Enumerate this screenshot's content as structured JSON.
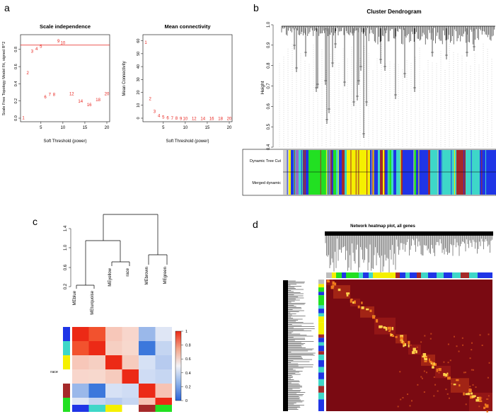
{
  "panels": {
    "a": {
      "letter": "a",
      "scale": {
        "title": "Scale independence",
        "xlabel": "Soft Threshold (power)",
        "ylabel": "Scale Free Topology Model Fit, signed R^2",
        "xticks": [
          "5",
          "10",
          "15",
          "20"
        ],
        "yticks": [
          "0.0",
          "0.2",
          "0.4",
          "0.6",
          "0.8"
        ]
      },
      "mean": {
        "title": "Mean connectivity",
        "xlabel": "Soft Threshold (power)",
        "ylabel": "Mean Connectivity",
        "xticks": [
          "5",
          "10",
          "15",
          "20"
        ],
        "yticks": [
          "0",
          "10",
          "20",
          "30",
          "40",
          "50",
          "60"
        ]
      }
    },
    "b": {
      "letter": "b",
      "title": "Cluster Dendrogram",
      "ylabel": "Height",
      "yticks": [
        "1.0",
        "0.9",
        "0.8",
        "0.7",
        "0.6",
        "0.5",
        "0.4"
      ],
      "row_labels": [
        "Dynamic Tree Cut",
        "Merged dynamic"
      ]
    },
    "c": {
      "letter": "c",
      "yticks": [
        "1.4",
        "1.0",
        "0.6",
        "0.2"
      ],
      "leaves": [
        "MEblue",
        "MEturquoise",
        "MEyellow",
        "race",
        "MEbrown",
        "MEgreen"
      ],
      "side_label": "race",
      "colorbar_ticks": [
        "1",
        "0.8",
        "0.6",
        "0.4",
        "0.2",
        "0"
      ]
    },
    "d": {
      "letter": "d",
      "title": "Network heatmap plot, all genes"
    }
  },
  "colors": {
    "red": "#e8211b",
    "module_blue": "#1f35e6",
    "module_turquoise": "#3ed7c8",
    "module_yellow": "#f5f000",
    "module_green": "#22e022",
    "module_brown": "#a52a2a",
    "module_grey": "#bebebe",
    "heat_dark": "#7a0a12"
  },
  "chart_data": [
    {
      "type": "scatter",
      "title": "Scale independence",
      "xlabel": "Soft Threshold (power)",
      "ylabel": "Scale Free Topology Model Fit, signed R^2",
      "x": [
        1,
        2,
        3,
        4,
        5,
        6,
        7,
        8,
        9,
        10,
        12,
        14,
        16,
        18,
        20
      ],
      "y": [
        0.01,
        0.53,
        0.78,
        0.81,
        0.84,
        0.25,
        0.28,
        0.28,
        0.9,
        0.88,
        0.29,
        0.2,
        0.16,
        0.22,
        0.29
      ],
      "labels": [
        "1",
        "2",
        "3",
        "4",
        "5",
        "6",
        "7",
        "8",
        "9",
        "10",
        "12",
        "14",
        "16",
        "18",
        "20"
      ],
      "hline": 0.85,
      "xlim": [
        1,
        20
      ],
      "ylim": [
        0,
        0.93
      ]
    },
    {
      "type": "scatter",
      "title": "Mean connectivity",
      "xlabel": "Soft Threshold (power)",
      "ylabel": "Mean Connectivity",
      "x": [
        1,
        2,
        3,
        4,
        5,
        6,
        7,
        8,
        9,
        10,
        12,
        14,
        16,
        18,
        20
      ],
      "y": [
        59,
        15.5,
        5.5,
        2.2,
        1.0,
        0.5,
        0.3,
        0.2,
        0.1,
        0.05,
        0.02,
        0.01,
        0.0,
        0.0,
        0.0
      ],
      "labels": [
        "1",
        "2",
        "3",
        "4",
        "5",
        "6",
        "7",
        "8",
        "9",
        "10",
        "12",
        "14",
        "16",
        "18",
        "20"
      ],
      "xlim": [
        1,
        20
      ],
      "ylim": [
        0,
        62
      ]
    }
  ]
}
